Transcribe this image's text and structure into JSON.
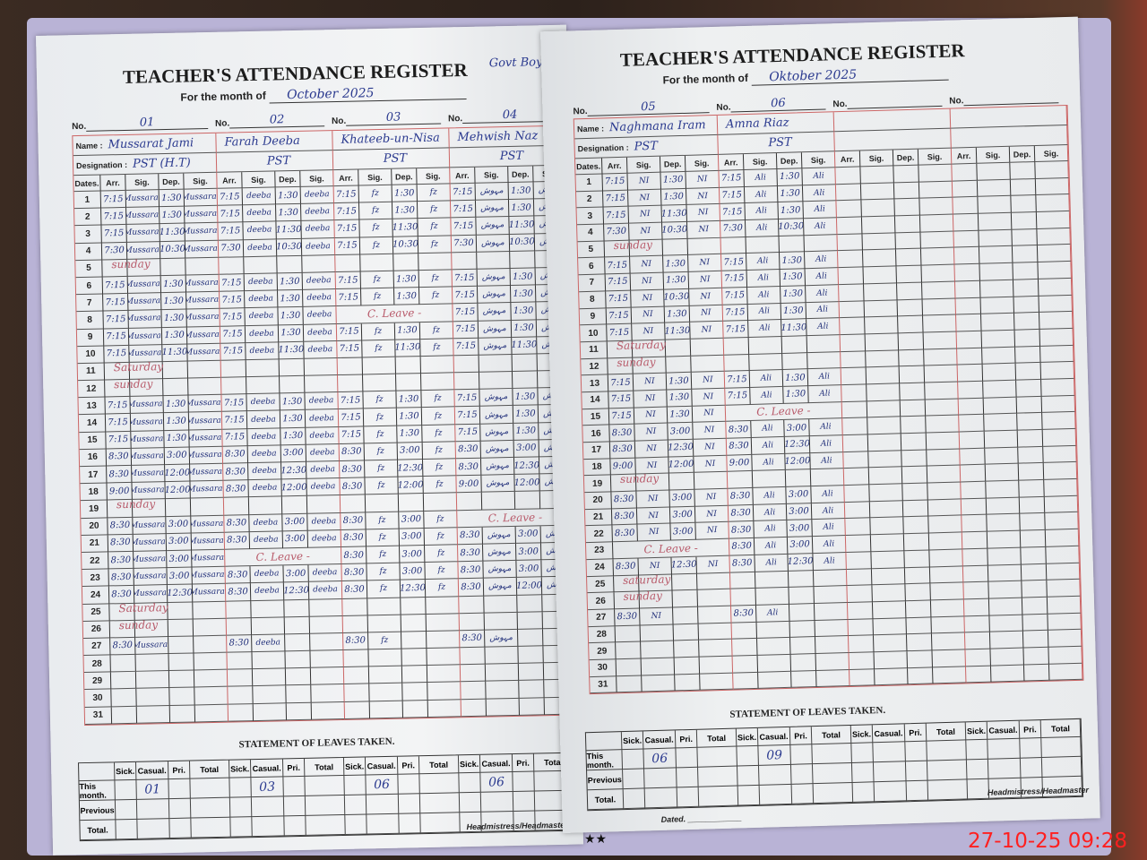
{
  "timestamp": "27-10-25 09:28",
  "labels": {
    "no": "No.",
    "name": "Name :",
    "designation": "Designation :",
    "dates": "Dates.",
    "arr": "Arr.",
    "sig": "Sig.",
    "dep": "Dep.",
    "leaves_title": "STATEMENT OF LEAVES TAKEN.",
    "leave_cols": [
      "Sick.",
      "Casual.",
      "Pri.",
      "Total"
    ],
    "leave_rows": [
      "This month.",
      "Previous",
      "Total."
    ],
    "signature": "Headmistress/Headmaster",
    "dated": "Dated."
  },
  "pages": [
    {
      "title": "TEACHER'S ATTENDANCE REGISTER",
      "month_label": "For the month of",
      "month": "October 2025",
      "school_note": "Govt Boys primary sho",
      "day_notes": {
        "5": "sunday",
        "11": "Saturday",
        "12": "sunday",
        "19": "sunday",
        "25": "Saturday",
        "26": "sunday"
      },
      "teachers": [
        {
          "no": "01",
          "name": "Mussarat Jami",
          "designation": "PST (H.T)",
          "sig": "Mussarat",
          "days": {
            "1": [
              "7:15",
              "1:30"
            ],
            "2": [
              "7:15",
              "1:30"
            ],
            "3": [
              "7:15",
              "11:30"
            ],
            "4": [
              "7:30",
              "10:30"
            ],
            "6": [
              "7:15",
              "1:30"
            ],
            "7": [
              "7:15",
              "1:30"
            ],
            "8": [
              "7:15",
              "1:30"
            ],
            "9": [
              "7:15",
              "1:30"
            ],
            "10": [
              "7:15",
              "11:30"
            ],
            "13": [
              "7:15",
              "1:30"
            ],
            "14": [
              "7:15",
              "1:30"
            ],
            "15": [
              "7:15",
              "1:30"
            ],
            "16": [
              "8:30",
              "3:00"
            ],
            "17": [
              "8:30",
              "12:00"
            ],
            "18": [
              "9:00",
              "12:00"
            ],
            "20": [
              "8:30",
              "3:00"
            ],
            "21": [
              "8:30",
              "3:00"
            ],
            "22": [
              "8:30",
              "3:00"
            ],
            "23": [
              "8:30",
              "3:00"
            ],
            "24": [
              "8:30",
              "12:30"
            ],
            "27": [
              "8:30",
              ""
            ]
          },
          "leaves": {
            "casual": "01"
          }
        },
        {
          "no": "02",
          "name": "Farah Deeba",
          "designation": "PST",
          "sig": "deeba",
          "days": {
            "1": [
              "7:15",
              "1:30"
            ],
            "2": [
              "7:15",
              "1:30"
            ],
            "3": [
              "7:15",
              "11:30"
            ],
            "4": [
              "7:30",
              "10:30"
            ],
            "6": [
              "7:15",
              "1:30"
            ],
            "7": [
              "7:15",
              "1:30"
            ],
            "8": [
              "7:15",
              "1:30"
            ],
            "9": [
              "7:15",
              "1:30"
            ],
            "10": [
              "7:15",
              "11:30"
            ],
            "13": [
              "7:15",
              "1:30"
            ],
            "14": [
              "7:15",
              "1:30"
            ],
            "15": [
              "7:15",
              "1:30"
            ],
            "16": [
              "8:30",
              "3:00"
            ],
            "17": [
              "8:30",
              "12:30"
            ],
            "18": [
              "8:30",
              "12:00"
            ],
            "20": [
              "8:30",
              "3:00"
            ],
            "21": [
              "8:30",
              "3:00"
            ],
            "22": "C. Leave -",
            "23": [
              "8:30",
              "3:00"
            ],
            "24": [
              "8:30",
              "12:30"
            ],
            "27": [
              "8:30",
              ""
            ]
          },
          "leaves": {
            "casual": "03"
          }
        },
        {
          "no": "03",
          "name": "Khateeb-un-Nisa",
          "designation": "PST",
          "sig": "fz",
          "days": {
            "1": [
              "7:15",
              "1:30"
            ],
            "2": [
              "7:15",
              "1:30"
            ],
            "3": [
              "7:15",
              "11:30"
            ],
            "4": [
              "7:15",
              "10:30"
            ],
            "6": [
              "7:15",
              "1:30"
            ],
            "7": [
              "7:15",
              "1:30"
            ],
            "8": "C. Leave -",
            "9": [
              "7:15",
              "1:30"
            ],
            "10": [
              "7:15",
              "11:30"
            ],
            "13": [
              "7:15",
              "1:30"
            ],
            "14": [
              "7:15",
              "1:30"
            ],
            "15": [
              "7:15",
              "1:30"
            ],
            "16": [
              "8:30",
              "3:00"
            ],
            "17": [
              "8:30",
              "12:30"
            ],
            "18": [
              "8:30",
              "12:00"
            ],
            "20": [
              "8:30",
              "3:00"
            ],
            "21": [
              "8:30",
              "3:00"
            ],
            "22": [
              "8:30",
              "3:00"
            ],
            "23": [
              "8:30",
              "3:00"
            ],
            "24": [
              "8:30",
              "12:30"
            ],
            "27": [
              "8:30",
              ""
            ]
          },
          "leaves": {
            "casual": "06"
          }
        },
        {
          "no": "04",
          "name": "Mehwish Naz",
          "designation": "PST",
          "sig": "مہوش",
          "days": {
            "1": [
              "7:15",
              "1:30"
            ],
            "2": [
              "7:15",
              "1:30"
            ],
            "3": [
              "7:15",
              "11:30"
            ],
            "4": [
              "7:30",
              "10:30"
            ],
            "6": [
              "7:15",
              "1:30"
            ],
            "7": [
              "7:15",
              "1:30"
            ],
            "8": [
              "7:15",
              "1:30"
            ],
            "9": [
              "7:15",
              "1:30"
            ],
            "10": [
              "7:15",
              "11:30"
            ],
            "13": [
              "7:15",
              "1:30"
            ],
            "14": [
              "7:15",
              "1:30"
            ],
            "15": [
              "7:15",
              "1:30"
            ],
            "16": [
              "8:30",
              "3:00"
            ],
            "17": [
              "8:30",
              "12:30"
            ],
            "18": [
              "9:00",
              "12:00"
            ],
            "20": "C. Leave -",
            "21": [
              "8:30",
              "3:00"
            ],
            "22": [
              "8:30",
              "3:00"
            ],
            "23": [
              "8:30",
              "3:00"
            ],
            "24": [
              "8:30",
              "12:00"
            ],
            "27": [
              "8:30",
              ""
            ]
          },
          "leaves": {
            "casual": "06"
          }
        }
      ]
    },
    {
      "title": "TEACHER'S ATTENDANCE REGISTER",
      "month_label": "For the month of",
      "month": "Oktober 2025",
      "school_note": "",
      "day_notes": {
        "5": "sunday",
        "11": "Saturday",
        "12": "sunday",
        "19": "sunday",
        "25": "saturday",
        "26": "sunday"
      },
      "teachers": [
        {
          "no": "05",
          "name": "Naghmana Iram",
          "designation": "PST",
          "sig": "NI",
          "days": {
            "1": [
              "7:15",
              "1:30"
            ],
            "2": [
              "7:15",
              "1:30"
            ],
            "3": [
              "7:15",
              "11:30"
            ],
            "4": [
              "7:30",
              "10:30"
            ],
            "6": [
              "7:15",
              "1:30"
            ],
            "7": [
              "7:15",
              "1:30"
            ],
            "8": [
              "7:15",
              "10:30"
            ],
            "9": [
              "7:15",
              "1:30"
            ],
            "10": [
              "7:15",
              "11:30"
            ],
            "13": [
              "7:15",
              "1:30"
            ],
            "14": [
              "7:15",
              "1:30"
            ],
            "15": [
              "7:15",
              "1:30"
            ],
            "16": [
              "8:30",
              "3:00"
            ],
            "17": [
              "8:30",
              "12:30"
            ],
            "18": [
              "9:00",
              "12:00"
            ],
            "20": [
              "8:30",
              "3:00"
            ],
            "21": [
              "8:30",
              "3:00"
            ],
            "22": [
              "8:30",
              "3:00"
            ],
            "23": "C. Leave -",
            "24": [
              "8:30",
              "12:30"
            ],
            "27": [
              "8:30",
              ""
            ]
          },
          "leaves": {
            "casual": "06"
          }
        },
        {
          "no": "06",
          "name": "Amna Riaz",
          "designation": "PST",
          "sig": "Ali",
          "days": {
            "1": [
              "7:15",
              "1:30"
            ],
            "2": [
              "7:15",
              "1:30"
            ],
            "3": [
              "7:15",
              "1:30"
            ],
            "4": [
              "7:30",
              "10:30"
            ],
            "6": [
              "7:15",
              "1:30"
            ],
            "7": [
              "7:15",
              "1:30"
            ],
            "8": [
              "7:15",
              "1:30"
            ],
            "9": [
              "7:15",
              "1:30"
            ],
            "10": [
              "7:15",
              "11:30"
            ],
            "13": [
              "7:15",
              "1:30"
            ],
            "14": [
              "7:15",
              "1:30"
            ],
            "15": "C. Leave -",
            "16": [
              "8:30",
              "3:00"
            ],
            "17": [
              "8:30",
              "12:30"
            ],
            "18": [
              "9:00",
              "12:00"
            ],
            "20": [
              "8:30",
              "3:00"
            ],
            "21": [
              "8:30",
              "3:00"
            ],
            "22": [
              "8:30",
              "3:00"
            ],
            "23": [
              "8:30",
              "3:00"
            ],
            "24": [
              "8:30",
              "12:30"
            ],
            "27": [
              "8:30",
              ""
            ]
          },
          "leaves": {
            "casual": "09"
          }
        },
        {
          "no": "",
          "name": "",
          "designation": "",
          "sig": "",
          "days": {},
          "leaves": {}
        },
        {
          "no": "",
          "name": "",
          "designation": "",
          "sig": "",
          "days": {},
          "leaves": {}
        }
      ]
    }
  ]
}
